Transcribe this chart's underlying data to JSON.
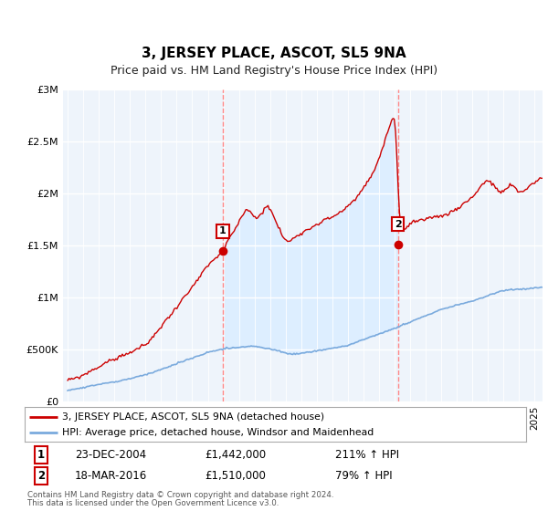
{
  "title": "3, JERSEY PLACE, ASCOT, SL5 9NA",
  "subtitle": "Price paid vs. HM Land Registry's House Price Index (HPI)",
  "legend_line1": "3, JERSEY PLACE, ASCOT, SL5 9NA (detached house)",
  "legend_line2": "HPI: Average price, detached house, Windsor and Maidenhead",
  "footnote1": "Contains HM Land Registry data © Crown copyright and database right 2024.",
  "footnote2": "This data is licensed under the Open Government Licence v3.0.",
  "sale1_date": "23-DEC-2004",
  "sale1_price": 1442000,
  "sale1_label": "211% ↑ HPI",
  "sale1_year": 2004.97,
  "sale2_date": "18-MAR-2016",
  "sale2_price": 1510000,
  "sale2_label": "79% ↑ HPI",
  "sale2_year": 2016.21,
  "ylim": [
    0,
    3000000
  ],
  "xlim_start": 1994.7,
  "xlim_end": 2025.5,
  "red_color": "#cc0000",
  "blue_color": "#7aaadd",
  "fill_color": "#ddeeff",
  "marker_color": "#cc0000",
  "vline_color": "#ff8888",
  "background_color": "#eef4fb",
  "grid_color": "#ffffff",
  "title_fontsize": 11,
  "subtitle_fontsize": 9
}
